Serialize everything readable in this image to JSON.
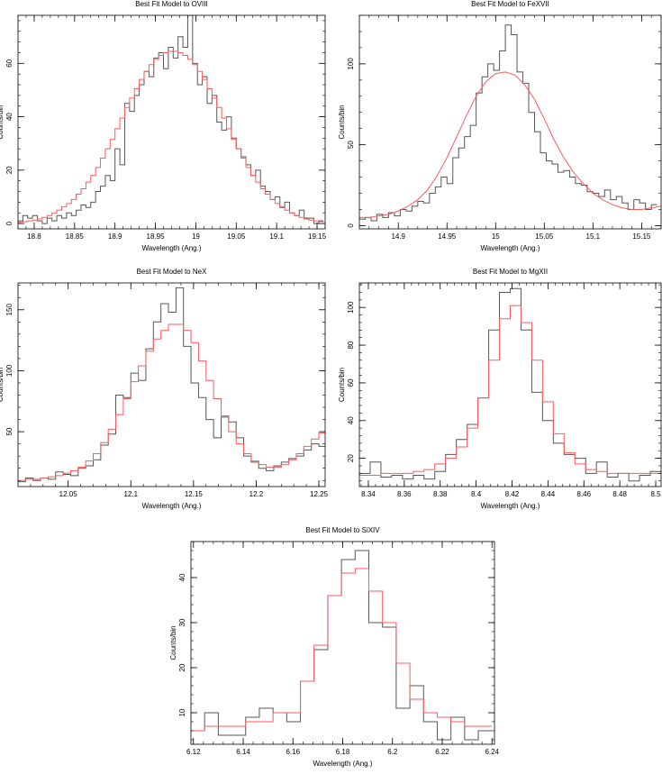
{
  "colors": {
    "data": "#555555",
    "model": "#ff5a5a",
    "axis": "#000000"
  },
  "chart_data": [
    {
      "type": "line",
      "title": "Best Fit Model to OVIII",
      "xlabel": "Wavelength (Ang.)",
      "ylabel": "Counts/bin",
      "xlim": [
        18.78,
        19.16
      ],
      "ylim": [
        -2,
        78
      ],
      "xticks": [
        18.8,
        18.85,
        18.9,
        18.95,
        19.0,
        19.05,
        19.1,
        19.15
      ],
      "xtick_labels": [
        "18.8",
        "18.85",
        "18.9",
        "18.95",
        "19",
        "19.05",
        "19.1",
        "19.15"
      ],
      "yticks": [
        0,
        20,
        40,
        60
      ],
      "ytick_labels": [
        "0",
        "20",
        "40",
        "60"
      ],
      "series": [
        {
          "name": "data",
          "style": "step",
          "x": [
            18.78,
            18.786,
            18.792,
            18.798,
            18.804,
            18.81,
            18.816,
            18.822,
            18.828,
            18.834,
            18.84,
            18.846,
            18.852,
            18.858,
            18.864,
            18.87,
            18.876,
            18.882,
            18.888,
            18.894,
            18.9,
            18.906,
            18.912,
            18.918,
            18.924,
            18.93,
            18.936,
            18.942,
            18.948,
            18.954,
            18.96,
            18.966,
            18.972,
            18.978,
            18.984,
            18.99,
            18.996,
            19.002,
            19.008,
            19.014,
            19.02,
            19.026,
            19.032,
            19.038,
            19.044,
            19.05,
            19.056,
            19.062,
            19.068,
            19.074,
            19.08,
            19.086,
            19.092,
            19.098,
            19.104,
            19.11,
            19.116,
            19.122,
            19.128,
            19.134,
            19.14,
            19.146,
            19.152
          ],
          "y": [
            1,
            3,
            2,
            3,
            1,
            0,
            2,
            1,
            3,
            2,
            4,
            3,
            5,
            7,
            6,
            8,
            12,
            14,
            18,
            16,
            28,
            22,
            45,
            42,
            48,
            52,
            57,
            55,
            62,
            64,
            58,
            66,
            62,
            70,
            66,
            78,
            60,
            52,
            55,
            45,
            48,
            38,
            35,
            40,
            32,
            28,
            25,
            22,
            18,
            20,
            14,
            12,
            9,
            10,
            6,
            8,
            4,
            3,
            5,
            2,
            2,
            0,
            1
          ]
        },
        {
          "name": "model",
          "style": "step",
          "x": [
            18.78,
            18.786,
            18.792,
            18.798,
            18.804,
            18.81,
            18.816,
            18.822,
            18.828,
            18.834,
            18.84,
            18.846,
            18.852,
            18.858,
            18.864,
            18.87,
            18.876,
            18.882,
            18.888,
            18.894,
            18.9,
            18.906,
            18.912,
            18.918,
            18.924,
            18.93,
            18.936,
            18.942,
            18.948,
            18.954,
            18.96,
            18.966,
            18.972,
            18.978,
            18.984,
            18.99,
            18.996,
            19.002,
            19.008,
            19.014,
            19.02,
            19.026,
            19.032,
            19.038,
            19.044,
            19.05,
            19.056,
            19.062,
            19.068,
            19.074,
            19.08,
            19.086,
            19.092,
            19.098,
            19.104,
            19.11,
            19.116,
            19.122,
            19.128,
            19.134,
            19.14,
            19.146,
            19.152
          ],
          "y": [
            0.5,
            0.7,
            1,
            1.3,
            1.7,
            2.3,
            3,
            4,
            5,
            6.3,
            7.5,
            9,
            11,
            13,
            15.5,
            18,
            21,
            24.5,
            28,
            31.5,
            35.5,
            39.5,
            43.5,
            47,
            50.5,
            54,
            57,
            59.5,
            61.5,
            63,
            64,
            64.5,
            64.5,
            64,
            63,
            61.5,
            59.5,
            57,
            54,
            50.5,
            47,
            43.5,
            39.5,
            35.5,
            31.5,
            28,
            24.5,
            21,
            18,
            15.5,
            13,
            11,
            9,
            7.5,
            6.3,
            5,
            4,
            3,
            2.3,
            1.7,
            1.3,
            1,
            0.7
          ]
        }
      ]
    },
    {
      "type": "line",
      "title": "Best Fit Model to FeXVII",
      "xlabel": "Wavelength (Ang.)",
      "ylabel": "Counts/bin",
      "xlim": [
        14.86,
        15.17
      ],
      "ylim": [
        -2,
        130
      ],
      "xticks": [
        14.9,
        14.95,
        15.0,
        15.05,
        15.1,
        15.15
      ],
      "xtick_labels": [
        "14.9",
        "14.95",
        "15",
        "15.05",
        "15.1",
        "15.15"
      ],
      "yticks": [
        0,
        50,
        100
      ],
      "ytick_labels": [
        "0",
        "50",
        "100"
      ],
      "series": [
        {
          "name": "data",
          "style": "step",
          "x": [
            14.86,
            14.866,
            14.872,
            14.878,
            14.884,
            14.89,
            14.896,
            14.902,
            14.908,
            14.914,
            14.92,
            14.926,
            14.932,
            14.938,
            14.944,
            14.95,
            14.956,
            14.962,
            14.968,
            14.974,
            14.98,
            14.986,
            14.992,
            14.998,
            15.004,
            15.01,
            15.016,
            15.022,
            15.028,
            15.034,
            15.04,
            15.046,
            15.052,
            15.058,
            15.064,
            15.07,
            15.076,
            15.082,
            15.088,
            15.094,
            15.1,
            15.106,
            15.112,
            15.118,
            15.124,
            15.13,
            15.136,
            15.142,
            15.148,
            15.154,
            15.16
          ],
          "y": [
            4,
            5,
            3,
            7,
            5,
            8,
            6,
            10,
            9,
            12,
            15,
            14,
            20,
            24,
            30,
            26,
            42,
            48,
            55,
            62,
            82,
            92,
            100,
            96,
            108,
            124,
            118,
            95,
            88,
            70,
            58,
            45,
            40,
            38,
            33,
            34,
            30,
            26,
            25,
            21,
            20,
            18,
            22,
            16,
            18,
            14,
            10,
            16,
            14,
            10,
            13
          ]
        },
        {
          "name": "model",
          "style": "smooth",
          "x": [
            14.86,
            14.87,
            14.88,
            14.89,
            14.9,
            14.91,
            14.92,
            14.93,
            14.94,
            14.95,
            14.96,
            14.97,
            14.98,
            14.99,
            15.0,
            15.01,
            15.02,
            15.03,
            15.04,
            15.05,
            15.06,
            15.07,
            15.08,
            15.09,
            15.1,
            15.11,
            15.12,
            15.13,
            15.14,
            15.15,
            15.16,
            15.17
          ],
          "y": [
            5,
            5,
            6,
            7,
            9,
            12,
            16,
            22,
            31,
            42,
            55,
            68,
            80,
            89,
            94,
            95,
            93,
            87,
            78,
            66,
            53,
            42,
            33,
            26,
            20,
            16,
            13,
            11,
            10,
            10,
            11,
            12
          ]
        }
      ]
    },
    {
      "type": "line",
      "title": "Best Fit Model to NeX",
      "xlabel": "Wavelength (Ang.)",
      "ylabel": "Counts/bin",
      "xlim": [
        12.01,
        12.255
      ],
      "ylim": [
        5,
        172
      ],
      "xticks": [
        12.05,
        12.1,
        12.15,
        12.2,
        12.25
      ],
      "xtick_labels": [
        "12.05",
        "12.1",
        "12.15",
        "12.2",
        "12.25"
      ],
      "yticks": [
        50,
        100,
        150
      ],
      "ytick_labels": [
        "50",
        "100",
        "150"
      ],
      "series": [
        {
          "name": "data",
          "style": "step",
          "x": [
            12.01,
            12.016,
            12.022,
            12.028,
            12.034,
            12.04,
            12.046,
            12.052,
            12.058,
            12.064,
            12.07,
            12.076,
            12.082,
            12.088,
            12.094,
            12.1,
            12.106,
            12.112,
            12.118,
            12.124,
            12.13,
            12.136,
            12.142,
            12.148,
            12.154,
            12.16,
            12.166,
            12.172,
            12.178,
            12.184,
            12.19,
            12.196,
            12.202,
            12.208,
            12.214,
            12.22,
            12.226,
            12.232,
            12.238,
            12.244,
            12.25
          ],
          "y": [
            9,
            12,
            10,
            12,
            11,
            17,
            15,
            14,
            20,
            22,
            27,
            39,
            48,
            80,
            78,
            98,
            92,
            118,
            140,
            155,
            148,
            168,
            120,
            90,
            78,
            60,
            45,
            62,
            58,
            45,
            30,
            25,
            20,
            18,
            22,
            25,
            28,
            30,
            35,
            40,
            38
          ]
        },
        {
          "name": "model",
          "style": "step",
          "x": [
            12.01,
            12.016,
            12.022,
            12.028,
            12.034,
            12.04,
            12.046,
            12.052,
            12.058,
            12.064,
            12.07,
            12.076,
            12.082,
            12.088,
            12.094,
            12.1,
            12.106,
            12.112,
            12.118,
            12.124,
            12.13,
            12.136,
            12.142,
            12.148,
            12.154,
            12.16,
            12.166,
            12.172,
            12.178,
            12.184,
            12.19,
            12.196,
            12.202,
            12.208,
            12.214,
            12.22,
            12.226,
            12.232,
            12.238,
            12.244,
            12.25
          ],
          "y": [
            10,
            11,
            11,
            12,
            13,
            14,
            16,
            18,
            21,
            26,
            32,
            41,
            52,
            64,
            77,
            91,
            104,
            116,
            126,
            133,
            138,
            138,
            133,
            123,
            108,
            92,
            77,
            63,
            50,
            40,
            32,
            26,
            23,
            21,
            21,
            23,
            27,
            32,
            38,
            44,
            49
          ]
        }
      ]
    },
    {
      "type": "line",
      "title": "Best Fit Model to MgXII",
      "xlabel": "Wavelength (Ang.)",
      "ylabel": "Counts/bin",
      "xlim": [
        8.335,
        8.503
      ],
      "ylim": [
        5,
        113
      ],
      "xticks": [
        8.34,
        8.36,
        8.38,
        8.4,
        8.42,
        8.44,
        8.46,
        8.48,
        8.5
      ],
      "xtick_labels": [
        "8.34",
        "8.36",
        "8.38",
        "8.4",
        "8.42",
        "8.44",
        "8.46",
        "8.48",
        "8.5"
      ],
      "yticks": [
        20,
        40,
        60,
        80,
        100
      ],
      "ytick_labels": [
        "20",
        "40",
        "60",
        "80",
        "100"
      ],
      "series": [
        {
          "name": "data",
          "style": "step",
          "x": [
            8.335,
            8.341,
            8.347,
            8.353,
            8.359,
            8.365,
            8.371,
            8.377,
            8.383,
            8.389,
            8.395,
            8.401,
            8.407,
            8.413,
            8.419,
            8.425,
            8.431,
            8.437,
            8.443,
            8.449,
            8.455,
            8.461,
            8.467,
            8.473,
            8.479,
            8.485,
            8.491,
            8.497
          ],
          "y": [
            12,
            18,
            10,
            11,
            9,
            11,
            9,
            13,
            22,
            30,
            38,
            52,
            88,
            108,
            110,
            88,
            55,
            40,
            28,
            22,
            20,
            12,
            18,
            10,
            12,
            8,
            11,
            13
          ]
        },
        {
          "name": "model",
          "style": "step",
          "x": [
            8.335,
            8.341,
            8.347,
            8.353,
            8.359,
            8.365,
            8.371,
            8.377,
            8.383,
            8.389,
            8.395,
            8.401,
            8.407,
            8.413,
            8.419,
            8.425,
            8.431,
            8.437,
            8.443,
            8.449,
            8.455,
            8.461,
            8.467,
            8.473,
            8.479,
            8.485,
            8.491,
            8.497
          ],
          "y": [
            11,
            11,
            12,
            12,
            12,
            13,
            14,
            17,
            20,
            26,
            36,
            52,
            72,
            94,
            101,
            92,
            72,
            50,
            33,
            23,
            17,
            14,
            13,
            12,
            12,
            12,
            12,
            12
          ]
        }
      ]
    },
    {
      "type": "line",
      "title": "Best Fit Model to SiXIV",
      "xlabel": "Wavelength (Ang.)",
      "ylabel": "Counts/bin",
      "xlim": [
        6.119,
        6.241
      ],
      "ylim": [
        3,
        48
      ],
      "xticks": [
        6.12,
        6.14,
        6.16,
        6.18,
        6.2,
        6.22,
        6.24
      ],
      "xtick_labels": [
        "6.12",
        "6.14",
        "6.16",
        "6.18",
        "6.2",
        "6.22",
        "6.24"
      ],
      "yticks": [
        10,
        20,
        30,
        40
      ],
      "ytick_labels": [
        "10",
        "20",
        "30",
        "40"
      ],
      "series": [
        {
          "name": "data",
          "style": "step",
          "x": [
            6.119,
            6.1245,
            6.13,
            6.1355,
            6.141,
            6.1465,
            6.152,
            6.1575,
            6.163,
            6.1685,
            6.174,
            6.1795,
            6.185,
            6.1905,
            6.196,
            6.2015,
            6.207,
            6.2125,
            6.218,
            6.2235,
            6.229,
            6.2345
          ],
          "y": [
            6,
            10,
            5,
            5,
            9,
            11,
            10,
            8,
            17,
            24,
            36,
            44,
            46,
            30,
            29,
            11,
            16,
            8,
            4,
            9,
            4,
            6
          ]
        },
        {
          "name": "model",
          "style": "step",
          "x": [
            6.119,
            6.1245,
            6.13,
            6.1355,
            6.141,
            6.1465,
            6.152,
            6.1575,
            6.163,
            6.1685,
            6.174,
            6.1795,
            6.185,
            6.1905,
            6.196,
            6.2015,
            6.207,
            6.2125,
            6.218,
            6.2235,
            6.229,
            6.2345
          ],
          "y": [
            6,
            7,
            7,
            7,
            8,
            8,
            10,
            10,
            17,
            25,
            36,
            41,
            42,
            37,
            30,
            21,
            13,
            10,
            9,
            8,
            7,
            7
          ]
        }
      ]
    }
  ]
}
